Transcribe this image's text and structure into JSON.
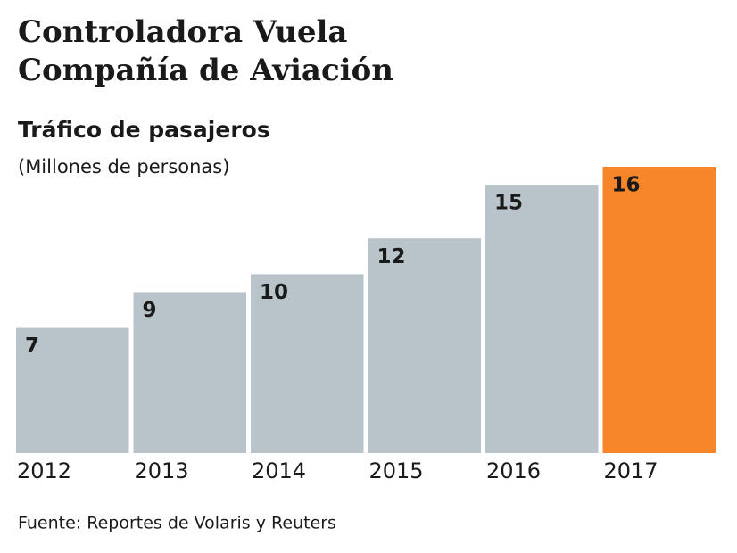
{
  "chart_data": {
    "type": "bar",
    "title": [
      "Controladora Vuela",
      "Compañía de Aviación"
    ],
    "subtitle": "Tráfico de pasajeros",
    "y_label": "(Millones de personas)",
    "source": "Fuente: Reportes de Volaris y Reuters",
    "categories": [
      "2012",
      "2013",
      "2014",
      "2015",
      "2016",
      "2017"
    ],
    "values": [
      7,
      9,
      10,
      12,
      15,
      16
    ],
    "colors": [
      "#b8c4c9",
      "#b8c4c9",
      "#b8c4c9",
      "#b8c4c9",
      "#b8c4c9",
      "#f7862a"
    ]
  }
}
